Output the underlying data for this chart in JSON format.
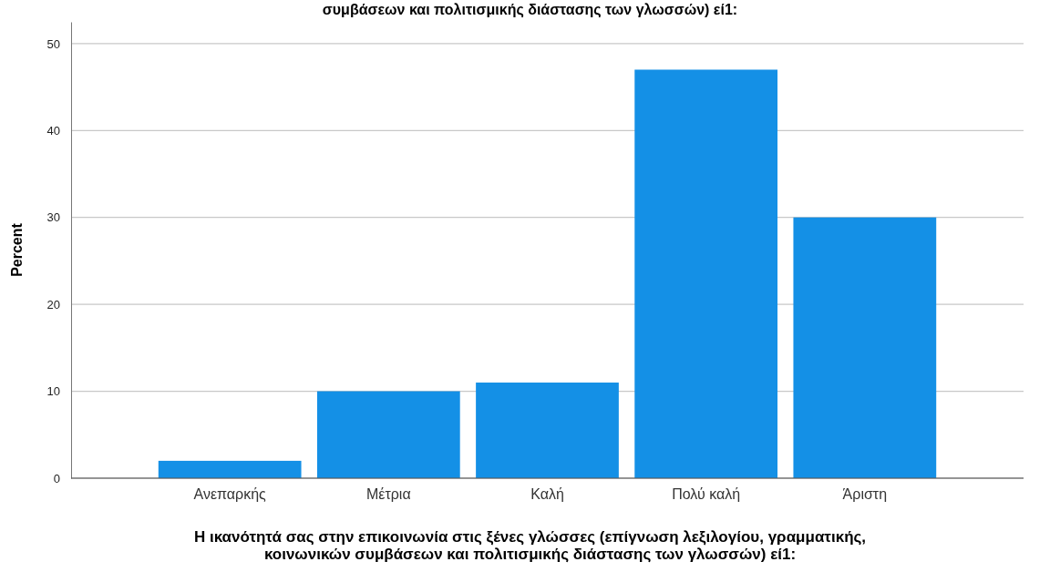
{
  "chart_data": {
    "type": "bar",
    "title": "συμβάσεων και πολιτισμικής διάστασης των γλωσσών) εί1:",
    "categories": [
      "Ανεπαρκής",
      "Μέτρια",
      "Καλή",
      "Πολύ καλή",
      "Άριστη"
    ],
    "values": [
      2,
      10,
      11,
      47,
      30
    ],
    "color": "#1490e6",
    "ylim": [
      0,
      52.5
    ],
    "yticks": [
      0,
      10,
      20,
      30,
      40,
      50
    ],
    "grid": "y",
    "ylabel": "Percent",
    "xlabel": "Η ικανότητά σας στην επικοινωνία στις ξένες γλώσσες (επίγνωση λεξιλογίου, γραμματικής, κοινωνικών συμβάσεων και πολιτισμικής διάστασης των γλωσσών) εί1:"
  }
}
